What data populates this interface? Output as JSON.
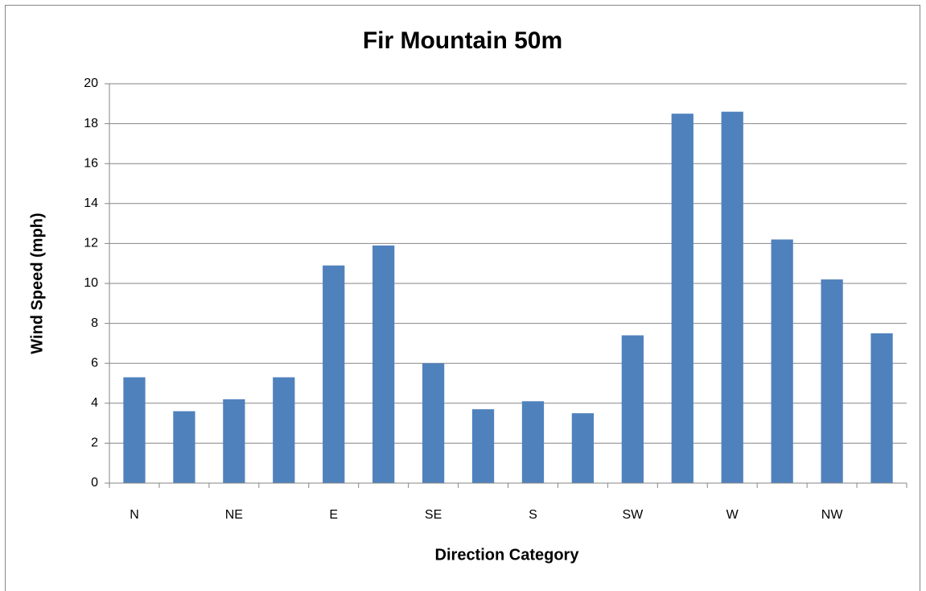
{
  "chart_data": {
    "type": "bar",
    "title": "Fir Mountain 50m",
    "x_label": "Direction Category",
    "y_label": "Wind Speed (mph)",
    "categories": [
      "N",
      null,
      "NE",
      null,
      "E",
      null,
      "SE",
      null,
      "S",
      null,
      "SW",
      null,
      "W",
      null,
      "NW",
      null
    ],
    "values": [
      5.3,
      3.6,
      4.2,
      5.3,
      10.9,
      11.9,
      6.0,
      3.7,
      4.1,
      3.5,
      7.4,
      18.5,
      18.6,
      12.2,
      10.2,
      7.5
    ],
    "color": "#4f81bd",
    "ylim": [
      0,
      20
    ],
    "yticks": [
      0,
      2,
      4,
      6,
      8,
      10,
      12,
      14,
      16,
      18,
      20
    ],
    "grid": true
  }
}
